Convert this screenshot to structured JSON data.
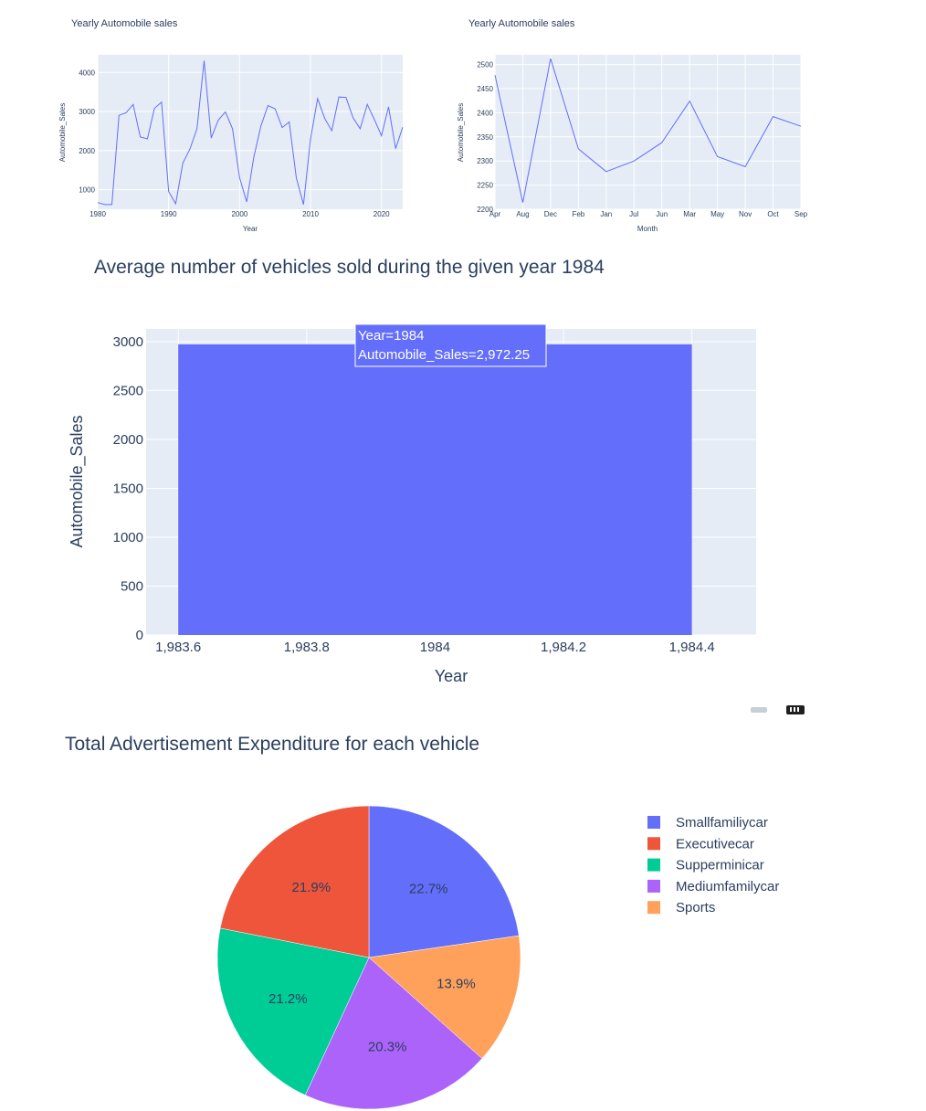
{
  "chart_data": [
    {
      "type": "line",
      "title": "Yearly Automobile sales",
      "xlabel": "Year",
      "ylabel": "Automobile_Sales",
      "x_ticks": [
        "1980",
        "1990",
        "2000",
        "2010",
        "2020"
      ],
      "y_ticks": [
        "1000",
        "2000",
        "3000",
        "4000"
      ],
      "xlim": [
        1980,
        2023
      ],
      "ylim": [
        500,
        4450
      ],
      "x": [
        1980,
        1981,
        1982,
        1983,
        1984,
        1985,
        1986,
        1987,
        1988,
        1989,
        1990,
        1991,
        1992,
        1993,
        1994,
        1995,
        1996,
        1997,
        1998,
        1999,
        2000,
        2001,
        2002,
        2003,
        2004,
        2005,
        2006,
        2007,
        2008,
        2009,
        2010,
        2011,
        2012,
        2013,
        2014,
        2015,
        2016,
        2017,
        2018,
        2019,
        2020,
        2021,
        2022,
        2023
      ],
      "series": [
        {
          "values": [
            670,
            620,
            620,
            2900,
            2970,
            3180,
            2350,
            2300,
            3080,
            3240,
            950,
            640,
            1680,
            2040,
            2560,
            4300,
            2320,
            2780,
            2990,
            2560,
            1310,
            690,
            1830,
            2630,
            3150,
            3070,
            2590,
            2730,
            1300,
            620,
            2290,
            3330,
            2820,
            2510,
            3370,
            3360,
            2840,
            2560,
            3180,
            2800,
            2380,
            3120,
            2050,
            2600
          ]
        }
      ],
      "line_color": "#636efa",
      "grid": true
    },
    {
      "type": "line",
      "title": "Yearly Automobile sales",
      "xlabel": "Month",
      "ylabel": "Automobile_Sales",
      "categories": [
        "Apr",
        "Aug",
        "Dec",
        "Feb",
        "Jan",
        "Jul",
        "Jun",
        "Mar",
        "May",
        "Nov",
        "Oct",
        "Sep"
      ],
      "y_ticks": [
        "2200",
        "2250",
        "2300",
        "2350",
        "2400",
        "2450",
        "2500"
      ],
      "ylim": [
        2200,
        2520
      ],
      "series": [
        {
          "values": [
            2478,
            2214,
            2512,
            2325,
            2278,
            2300,
            2338,
            2424,
            2309,
            2288,
            2392,
            2372
          ]
        }
      ],
      "line_color": "#636efa",
      "grid": true
    },
    {
      "type": "bar",
      "title": "Average number of vehicles sold during the given year 1984",
      "xlabel": "Year",
      "ylabel": "Automobile_Sales",
      "categories": [
        "1984"
      ],
      "values": [
        2972.25
      ],
      "x_ticks": [
        "1,983.6",
        "1,983.8",
        "1984",
        "1,984.2",
        "1,984.4"
      ],
      "y_ticks": [
        "0",
        "500",
        "1000",
        "1500",
        "2000",
        "2500",
        "3000"
      ],
      "xlim": [
        1983.55,
        1984.5
      ],
      "ylim": [
        0,
        3130
      ],
      "bar_color": "#636efa",
      "hover": {
        "line1": "Year=1984",
        "line2": "Automobile_Sales=2,972.25"
      },
      "grid": true
    },
    {
      "type": "pie",
      "title": "Total Advertisement Expenditure for each vehicle",
      "labels": [
        "Smallfamiliycar",
        "Executivecar",
        "Supperminicar",
        "Mediumfamilycar",
        "Sports"
      ],
      "values": [
        22.7,
        21.9,
        21.2,
        20.3,
        13.9
      ],
      "slice_order": [
        "Smallfamiliycar",
        "Sports",
        "Mediumfamilycar",
        "Supperminicar",
        "Executivecar"
      ],
      "percent_labels": {
        "Smallfamiliycar": "22.7%",
        "Executivecar": "21.9%",
        "Supperminicar": "21.2%",
        "Mediumfamilycar": "20.3%",
        "Sports": "13.9%"
      },
      "colors": {
        "Smallfamiliycar": "#636efa",
        "Executivecar": "#ef553b",
        "Supperminicar": "#00cc96",
        "Mediumfamilycar": "#ab63fa",
        "Sports": "#ffa15a"
      },
      "legend_position": "right"
    }
  ],
  "theme": {
    "plot_bg": "#e5ecf6",
    "grid": "#ffffff",
    "text": "#2a3f5f"
  },
  "toolbar": {
    "camera_icon": "camera-icon",
    "plot_icon": "plotly-logo-icon"
  }
}
